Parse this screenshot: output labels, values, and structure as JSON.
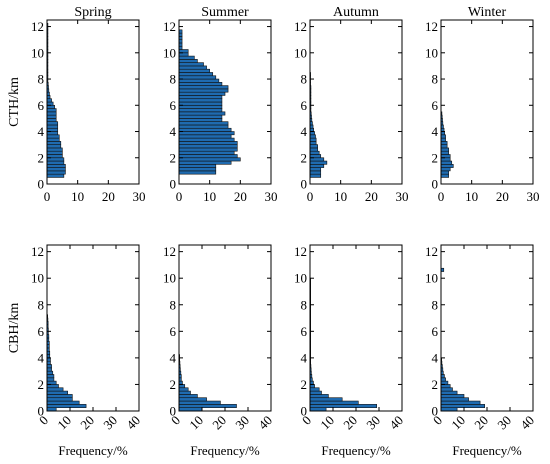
{
  "chart_data": {
    "type": "bar",
    "orientation": "horizontal",
    "bar_color": "#1f6bb0",
    "bar_edge_color": "#111111",
    "titles": [
      "Spring",
      "Summer",
      "Autumn",
      "Winter"
    ],
    "y_ticks": [
      0,
      2,
      4,
      6,
      8,
      10,
      12
    ],
    "bin_height_km": 0.25,
    "rows": [
      {
        "ylabel": "CTH/km",
        "xlabel": "",
        "xlim": [
          0,
          30
        ],
        "x_ticks": [
          0,
          10,
          20,
          30
        ],
        "x_tick_rotation": 0,
        "ylim": [
          0,
          12.5
        ],
        "panels": [
          {
            "season": "Spring",
            "bin_start_km": 0.5,
            "values": [
              5.5,
              6,
              6,
              6,
              5.5,
              5.5,
              5,
              5,
              5,
              4.5,
              4.5,
              4,
              4,
              3.5,
              3.5,
              3.5,
              3.5,
              3,
              3,
              3,
              3,
              2.5,
              2,
              1.5,
              1,
              0.8,
              0.6,
              0.5,
              0.4,
              0.3,
              0.3,
              0.3,
              0.3,
              0.3,
              0.3,
              0.3,
              0.3,
              0.3,
              0.3,
              0.3,
              0.3,
              0.3,
              0.3,
              0.3,
              0.3,
              0.3,
              0.3
            ]
          },
          {
            "season": "Summer",
            "bin_start_km": 0.75,
            "values": [
              12,
              12,
              12,
              17,
              20,
              19,
              18,
              19,
              19,
              19,
              18,
              17,
              18,
              17,
              16,
              16,
              14,
              14,
              15,
              14,
              14,
              14,
              14,
              14,
              15,
              16,
              16,
              14,
              13,
              12,
              11,
              10,
              9,
              8,
              6,
              5,
              3,
              3,
              1,
              1,
              1,
              1,
              1,
              1
            ]
          },
          {
            "season": "Autumn",
            "bin_start_km": 0.5,
            "values": [
              3.5,
              3.5,
              3.5,
              4.5,
              5.5,
              4.5,
              3.5,
              3,
              2.5,
              2.5,
              2,
              2,
              1.8,
              1.5,
              1.2,
              1,
              0.8,
              0.6,
              0.5,
              0.4,
              0.3,
              0.3,
              0.3,
              0.3,
              0.3,
              0.3,
              0.3,
              0.3,
              0.2,
              0.2,
              0.2,
              0.2
            ]
          },
          {
            "season": "Winter",
            "bin_start_km": 0.5,
            "values": [
              2.5,
              2.5,
              3,
              4,
              3.5,
              3,
              3,
              2.5,
              2.5,
              2,
              2,
              1.5,
              1.5,
              1.2,
              1,
              0.8,
              0.6,
              0.5,
              0.4,
              0.3
            ]
          }
        ]
      },
      {
        "ylabel": "CBH/km",
        "xlabel": "Frequency/%",
        "xlim": [
          0,
          40
        ],
        "x_ticks": [
          0,
          10,
          20,
          30,
          40
        ],
        "x_tick_rotation": -45,
        "ylim": [
          0,
          12.5
        ],
        "panels": [
          {
            "season": "Spring",
            "bin_start_km": 0,
            "values": [
              4,
              17,
              14,
              11,
              11,
              9,
              7,
              5,
              4,
              3,
              3,
              2.5,
              2,
              2,
              1.5,
              1.5,
              1.2,
              1.2,
              1,
              1,
              1,
              0.8,
              0.8,
              0.6,
              0.6,
              0.5,
              0.5,
              0.4,
              0.3
            ]
          },
          {
            "season": "Summer",
            "bin_start_km": 0,
            "values": [
              10,
              25,
              18,
              12,
              8,
              5,
              4,
              2.5,
              1.5,
              1,
              1,
              0.8,
              0.6,
              0.5,
              0.4,
              0.3,
              0.3
            ]
          },
          {
            "season": "Autumn",
            "bin_start_km": 0,
            "values": [
              7,
              29,
              21,
              14,
              8,
              5,
              4,
              2,
              1.5,
              1,
              0.8,
              0.6,
              0.5,
              0.4,
              0.3,
              0.3,
              0.3,
              0.3,
              0.3,
              0.3,
              0.3,
              0.3,
              0.3,
              0.3,
              0.3,
              0.3,
              0.3,
              0.3,
              0.3,
              0.3,
              0.3,
              0.3,
              0.3,
              0.3,
              0.3,
              0.3,
              0.3,
              0.3,
              0.3,
              0.3
            ]
          },
          {
            "season": "Winter",
            "bin_start_km": 0,
            "values": [
              7,
              19,
              17,
              12,
              10,
              7,
              5,
              4,
              3,
              2,
              1.5,
              1,
              0.8,
              0.6,
              0.4,
              0.3,
              0,
              0,
              0,
              0,
              0,
              0,
              0,
              0,
              0,
              0,
              0,
              0,
              0,
              0,
              0,
              0,
              0,
              0,
              0,
              0,
              0,
              0,
              0,
              0,
              0,
              0,
              1.2
            ]
          }
        ]
      }
    ]
  }
}
